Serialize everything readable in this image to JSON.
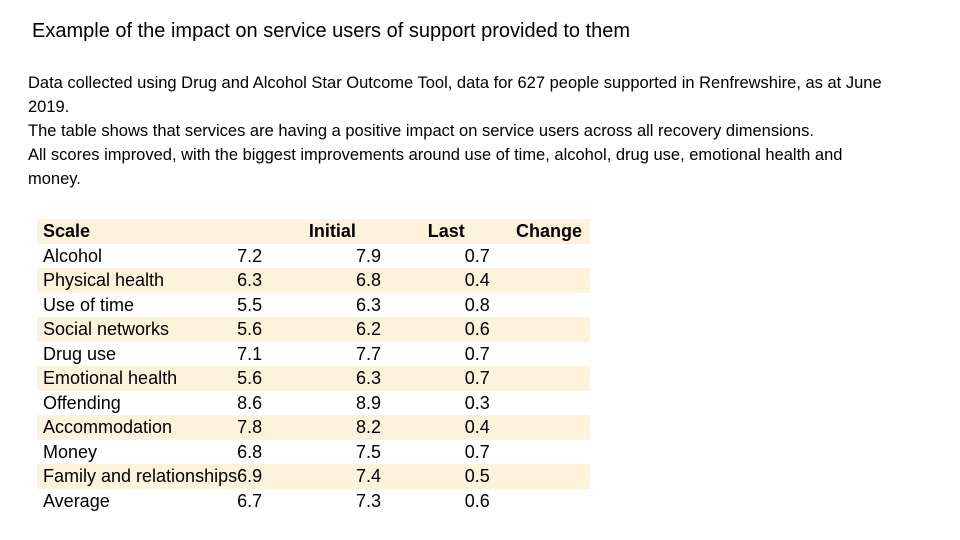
{
  "slide": {
    "title": "Example of the impact on service users of support provided to them",
    "paragraphs": [
      "Data collected using Drug and Alcohol Star Outcome Tool, data for 627 people supported in Renfrewshire, as at June 2019.",
      "The table shows that services are having a positive impact on service users across all recovery dimensions.",
      "All scores improved, with the biggest improvements around use of time, alcohol, drug use, emotional health and money."
    ]
  },
  "table": {
    "headers": {
      "scale": "Scale",
      "initial": "Initial",
      "last": "Last",
      "change": "Change"
    },
    "rows": [
      {
        "scale": "Alcohol",
        "initial": "7.2",
        "last": "7.9",
        "change": "0.7"
      },
      {
        "scale": "Physical health",
        "initial": "6.3",
        "last": "6.8",
        "change": "0.4"
      },
      {
        "scale": "Use of time",
        "initial": "5.5",
        "last": "6.3",
        "change": "0.8"
      },
      {
        "scale": "Social networks",
        "initial": "5.6",
        "last": "6.2",
        "change": "0.6"
      },
      {
        "scale": "Drug use",
        "initial": "7.1",
        "last": "7.7",
        "change": "0.7"
      },
      {
        "scale": "Emotional health",
        "initial": "5.6",
        "last": "6.3",
        "change": "0.7"
      },
      {
        "scale": "Offending",
        "initial": "8.6",
        "last": "8.9",
        "change": "0.3"
      },
      {
        "scale": "Accommodation",
        "initial": "7.8",
        "last": "8.2",
        "change": "0.4"
      },
      {
        "scale": "Money",
        "initial": "6.8",
        "last": "7.5",
        "change": "0.7"
      },
      {
        "scale": "Family and relationships",
        "initial": "6.9",
        "last": "7.4",
        "change": "0.5"
      },
      {
        "scale": "Average",
        "initial": "6.7",
        "last": "7.3",
        "change": "0.6"
      }
    ]
  },
  "colors": {
    "band": "#fdf2dc",
    "text": "#000000"
  }
}
